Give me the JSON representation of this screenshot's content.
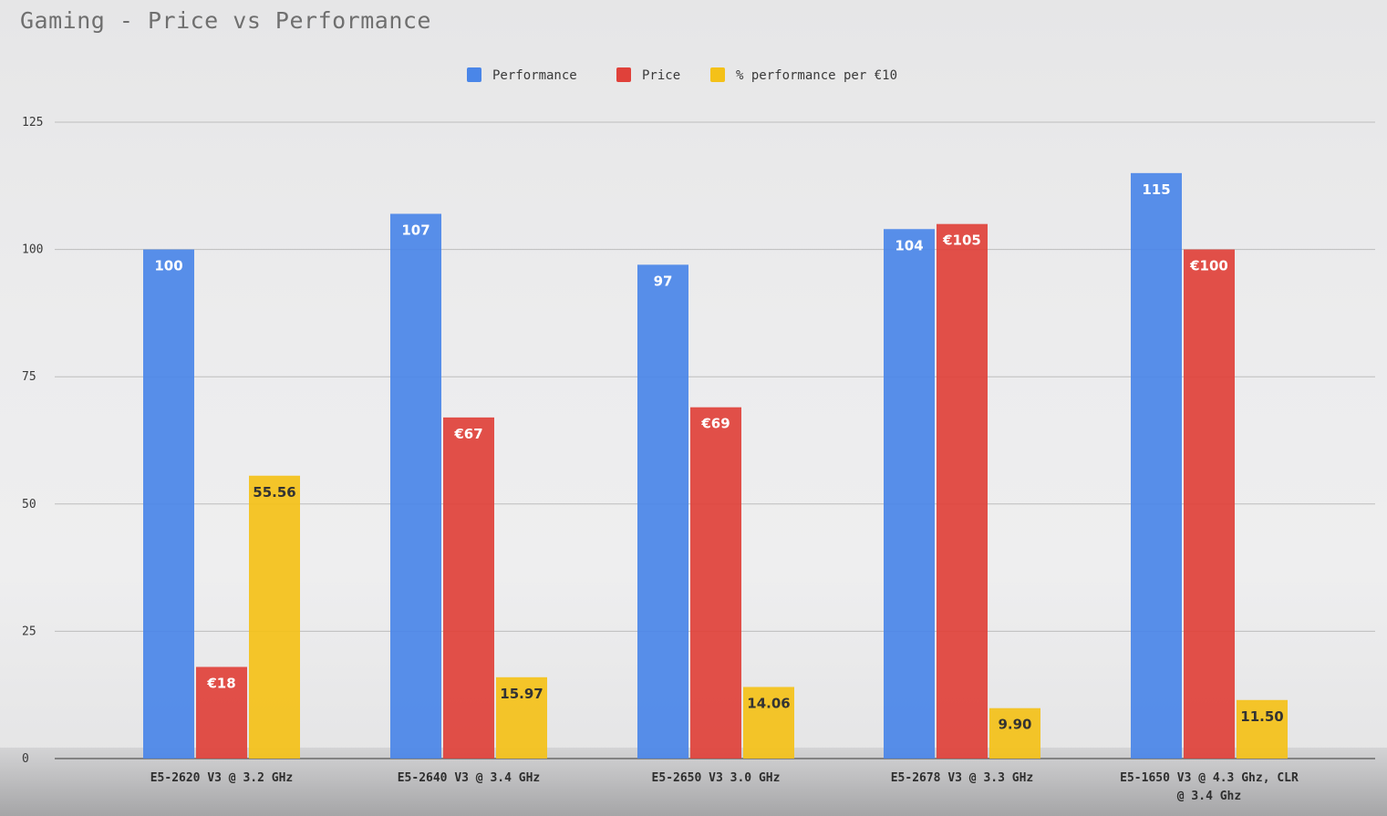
{
  "chart_data": {
    "type": "bar",
    "title": "Gaming - Price vs Performance",
    "xlabel": "",
    "ylabel": "",
    "ylim": [
      0,
      125
    ],
    "yticks": [
      0,
      25,
      50,
      75,
      100,
      125
    ],
    "grid": true,
    "legend_position": "top",
    "categories": [
      [
        "E5-2620 V3 @ 3.2 GHz"
      ],
      [
        "E5-2640 V3 @ 3.4 GHz"
      ],
      [
        "E5-2650 V3 3.0 GHz"
      ],
      [
        "E5-2678 V3 @ 3.3 GHz"
      ],
      [
        "E5-1650 V3 @ 4.3 Ghz, CLR",
        "@ 3.4 Ghz"
      ]
    ],
    "series": [
      {
        "name": "Performance",
        "color": "#4a86e8",
        "values": [
          100,
          107,
          97,
          104,
          115
        ],
        "labels": [
          "100",
          "107",
          "97",
          "104",
          "115"
        ],
        "label_color": "#ffffff"
      },
      {
        "name": "Price",
        "color": "#e0413a",
        "values": [
          18,
          67,
          69,
          105,
          100
        ],
        "labels": [
          "€18",
          "€67",
          "€69",
          "€105",
          "€100"
        ],
        "label_color": "#ffffff"
      },
      {
        "name": "% performance per €10",
        "color": "#f4c118",
        "values": [
          55.56,
          15.97,
          14.06,
          9.9,
          11.5
        ],
        "labels": [
          "55.56",
          "15.97",
          "14.06",
          "9.90",
          "11.50"
        ],
        "label_color": "#333333"
      }
    ]
  }
}
